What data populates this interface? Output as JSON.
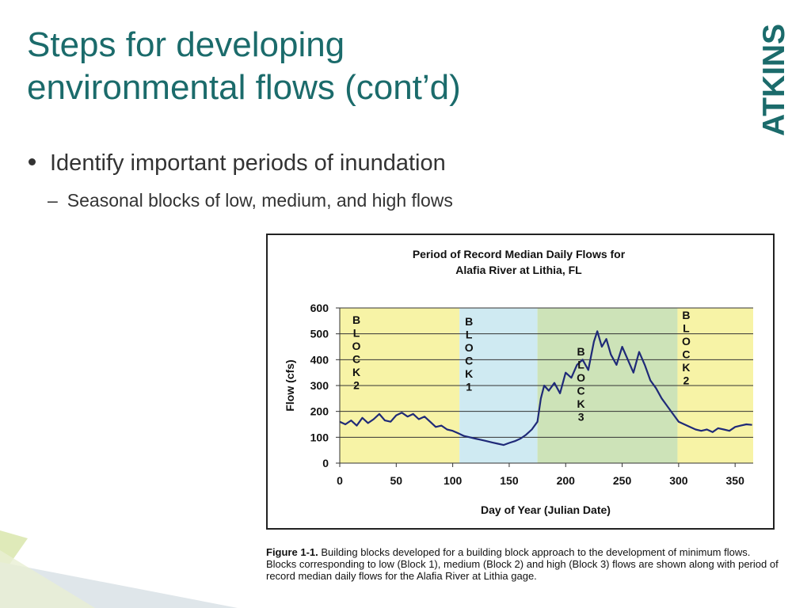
{
  "slide": {
    "title_line1": "Steps for developing",
    "title_line2": "environmental flows (cont’d)",
    "logo_text": "ATKINS",
    "bullet": "Identify important periods of inundation",
    "sub_bullet": "Seasonal blocks of low, medium, and high flows"
  },
  "colors": {
    "title": "#1b6b6b",
    "logo": "#1b6b6b",
    "block_low": "#cfeaf2",
    "block_medium": "#f7f3a6",
    "block_high": "#cde3b8",
    "flow_line": "#1f2a78"
  },
  "chart_data": {
    "type": "line",
    "title_line1": "Period of Record Median Daily Flows for",
    "title_line2": "Alafia River at Lithia, FL",
    "xlabel": "Day of Year (Julian Date)",
    "ylabel": "Flow (cfs)",
    "xlim": [
      0,
      366
    ],
    "ylim": [
      0,
      600
    ],
    "xticks": [
      "0",
      "50",
      "100",
      "150",
      "200",
      "250",
      "300",
      "350"
    ],
    "yticks": [
      "0",
      "100",
      "200",
      "300",
      "400",
      "500",
      "600"
    ],
    "grid": "horizontal",
    "blocks": [
      {
        "label": "BLOCK2",
        "start": 0,
        "end": 106,
        "color": "#f7f3a6"
      },
      {
        "label": "BLOCK1",
        "start": 106,
        "end": 175,
        "color": "#cfeaf2"
      },
      {
        "label": "BLOCK3",
        "start": 175,
        "end": 299,
        "color": "#cde3b8"
      },
      {
        "label": "BLOCK2",
        "start": 299,
        "end": 366,
        "color": "#f7f3a6"
      }
    ],
    "series": [
      {
        "x": [
          0,
          5,
          10,
          15,
          20,
          25,
          30,
          35,
          40,
          45,
          50,
          55,
          60,
          65,
          70,
          75,
          80,
          85,
          90,
          95,
          100,
          105,
          110,
          115,
          120,
          125,
          130,
          135,
          140,
          145,
          150,
          155,
          160,
          165,
          170,
          175,
          178,
          181,
          185,
          190,
          195,
          200,
          205,
          210,
          215,
          220,
          225,
          228,
          232,
          236,
          240,
          245,
          250,
          255,
          260,
          265,
          270,
          275,
          280,
          285,
          290,
          295,
          300,
          305,
          310,
          315,
          320,
          325,
          330,
          335,
          340,
          345,
          350,
          355,
          360,
          365
        ],
        "y": [
          160,
          150,
          165,
          145,
          175,
          155,
          170,
          190,
          165,
          160,
          185,
          195,
          180,
          190,
          170,
          180,
          160,
          140,
          145,
          130,
          125,
          115,
          105,
          100,
          95,
          90,
          85,
          80,
          75,
          70,
          78,
          85,
          95,
          110,
          130,
          160,
          250,
          300,
          280,
          310,
          270,
          350,
          330,
          380,
          400,
          360,
          470,
          510,
          450,
          480,
          420,
          380,
          450,
          400,
          350,
          430,
          380,
          320,
          290,
          250,
          220,
          190,
          160,
          150,
          140,
          130,
          125,
          130,
          120,
          135,
          130,
          125,
          140,
          145,
          150,
          148
        ]
      }
    ]
  },
  "figure": {
    "label": "Figure 1-1.",
    "text": "Building blocks developed for a building block approach to the development of minimum flows. Blocks corresponding to low (Block 1), medium (Block 2) and high (Block 3) flows are shown along with period of record median daily flows for the Alafia River at Lithia gage."
  }
}
